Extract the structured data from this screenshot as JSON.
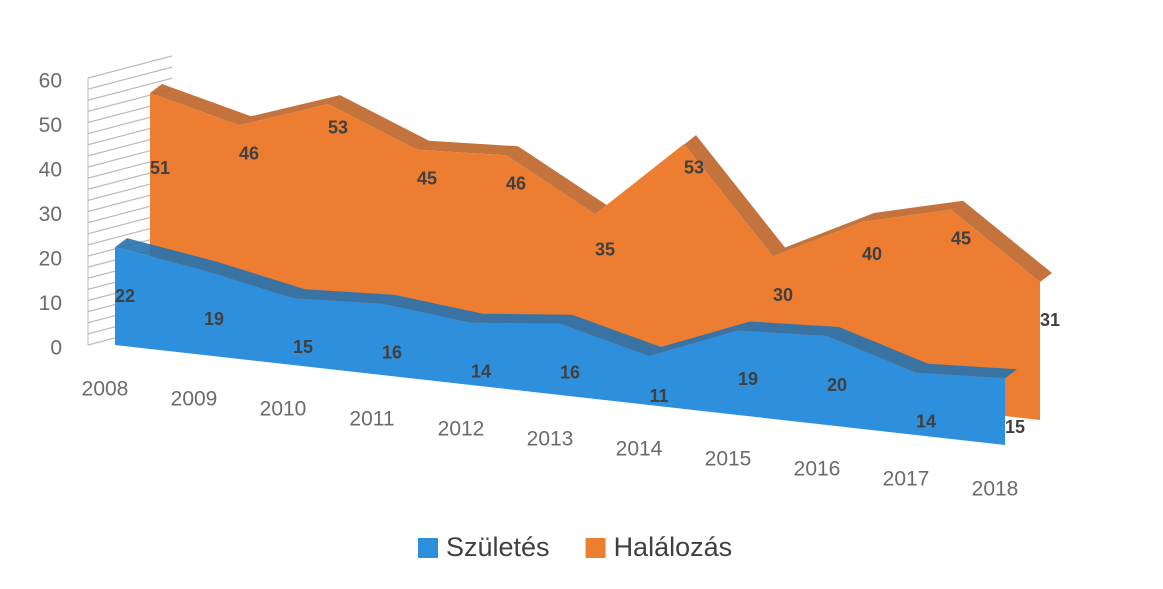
{
  "chart_data": {
    "type": "area3d",
    "categories": [
      "2008",
      "2009",
      "2010",
      "2011",
      "2012",
      "2013",
      "2014",
      "2015",
      "2016",
      "2017",
      "2018"
    ],
    "series": [
      {
        "name": "Halálozás",
        "color": "#ed7d31",
        "values": [
          51,
          46,
          53,
          45,
          46,
          35,
          53,
          30,
          40,
          45,
          31
        ]
      },
      {
        "name": "Születés",
        "color": "#2e8fdc",
        "values": [
          22,
          19,
          15,
          16,
          14,
          16,
          11,
          19,
          20,
          14,
          15
        ]
      }
    ],
    "ylim": [
      0,
      60
    ],
    "yticks": [
      0,
      10,
      20,
      30,
      40,
      50,
      60
    ],
    "grid": true,
    "legend": "bottom"
  }
}
